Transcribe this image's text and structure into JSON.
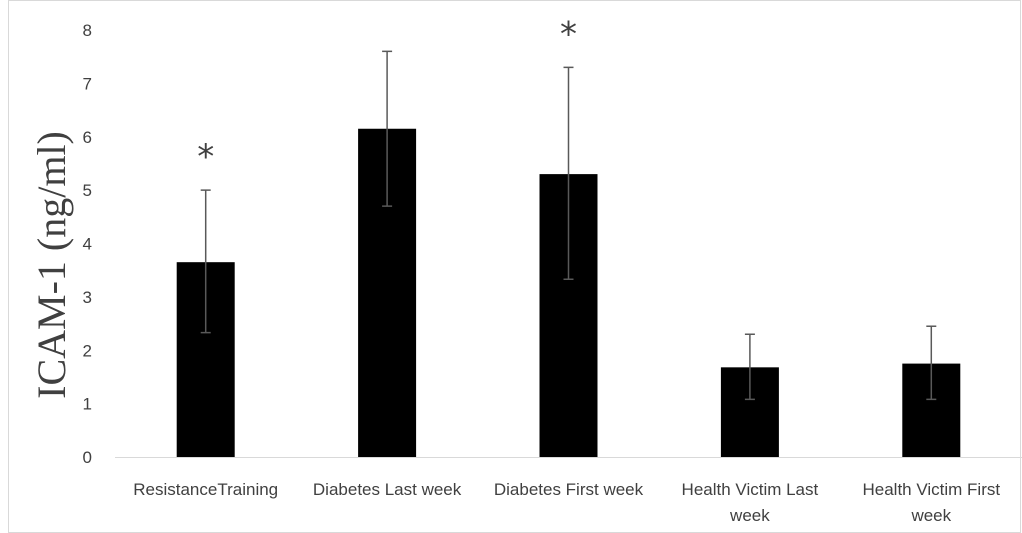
{
  "chart_data": {
    "type": "bar",
    "ylabel": "ICAM-1 (ng/ml)",
    "xlabel": "",
    "ylim": [
      0,
      8
    ],
    "yticks": [
      0,
      1,
      2,
      3,
      4,
      5,
      6,
      7,
      8
    ],
    "grid": false,
    "legend": "none",
    "categories": [
      [
        "ResistanceTraining"
      ],
      [
        "Diabetes Last week"
      ],
      [
        "Diabetes First week"
      ],
      [
        "Health Victim Last",
        "week"
      ],
      [
        "Health Victim First",
        "week"
      ]
    ],
    "values": [
      3.65,
      6.15,
      5.3,
      1.68,
      1.75
    ],
    "error_upper": [
      5.0,
      7.6,
      7.3,
      2.3,
      2.45
    ],
    "error_lower": [
      2.33,
      4.7,
      3.33,
      1.08,
      1.08
    ],
    "significance": [
      "*",
      "",
      "*",
      "",
      ""
    ],
    "bar_color": "#000000",
    "axis_color": "#d9d9d9",
    "text_color": "#404040"
  }
}
